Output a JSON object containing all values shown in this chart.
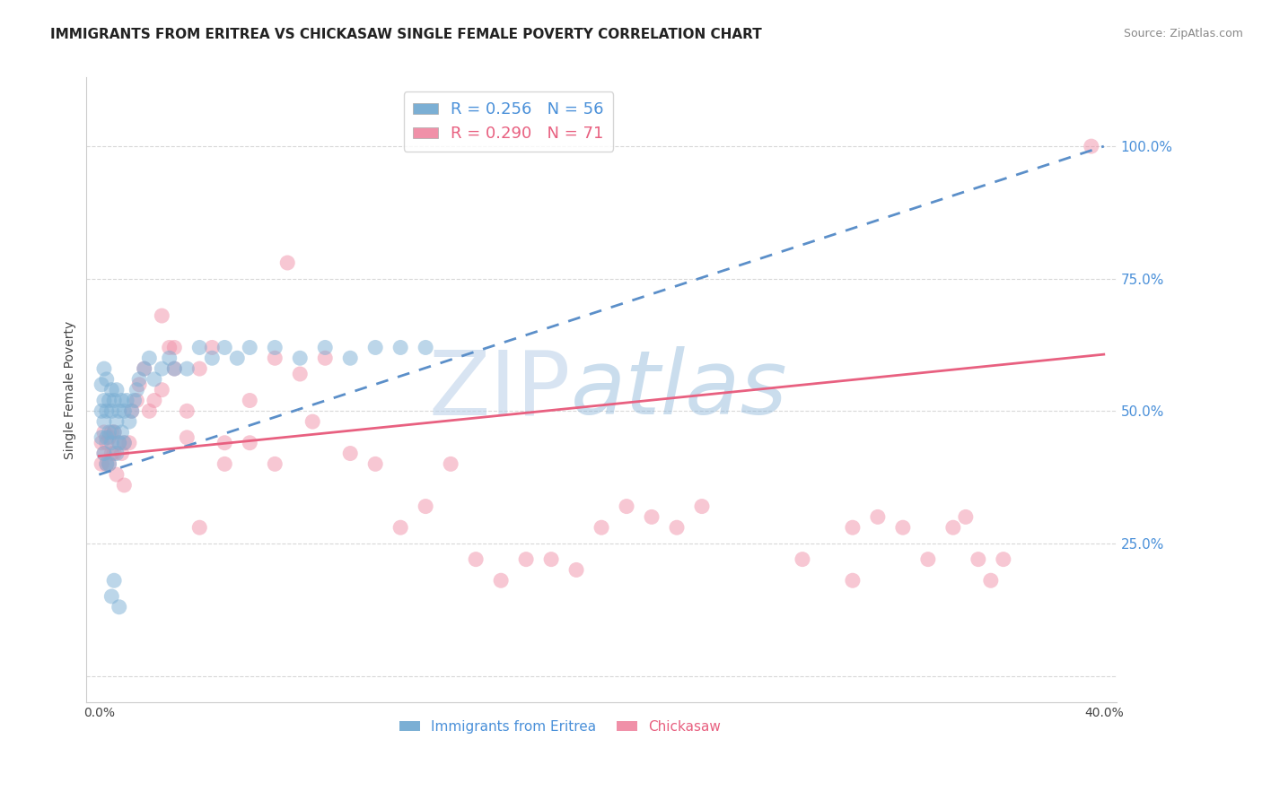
{
  "title": "IMMIGRANTS FROM ERITREA VS CHICKASAW SINGLE FEMALE POVERTY CORRELATION CHART",
  "source_text": "Source: ZipAtlas.com",
  "ylabel": "Single Female Poverty",
  "xlim": [
    -0.005,
    0.405
  ],
  "ylim": [
    -0.05,
    1.13
  ],
  "yticks": [
    0.0,
    0.25,
    0.5,
    0.75,
    1.0
  ],
  "ytick_labels": [
    "",
    "25.0%",
    "50.0%",
    "75.0%",
    "100.0%"
  ],
  "xticks": [
    0.0,
    0.1,
    0.2,
    0.3,
    0.4
  ],
  "xtick_labels": [
    "0.0%",
    "",
    "",
    "",
    "40.0%"
  ],
  "watermark_zip": "ZIP",
  "watermark_atlas": "atlas",
  "blue_scatter_x": [
    0.001,
    0.001,
    0.001,
    0.002,
    0.002,
    0.002,
    0.002,
    0.003,
    0.003,
    0.003,
    0.003,
    0.004,
    0.004,
    0.004,
    0.005,
    0.005,
    0.005,
    0.006,
    0.006,
    0.007,
    0.007,
    0.007,
    0.008,
    0.008,
    0.009,
    0.009,
    0.01,
    0.01,
    0.011,
    0.012,
    0.013,
    0.014,
    0.015,
    0.016,
    0.018,
    0.02,
    0.022,
    0.025,
    0.028,
    0.03,
    0.035,
    0.04,
    0.045,
    0.05,
    0.055,
    0.06,
    0.07,
    0.08,
    0.09,
    0.1,
    0.11,
    0.12,
    0.13,
    0.005,
    0.006,
    0.008
  ],
  "blue_scatter_y": [
    0.55,
    0.5,
    0.45,
    0.58,
    0.52,
    0.48,
    0.42,
    0.56,
    0.5,
    0.45,
    0.4,
    0.52,
    0.46,
    0.4,
    0.54,
    0.5,
    0.44,
    0.52,
    0.46,
    0.54,
    0.48,
    0.42,
    0.5,
    0.44,
    0.52,
    0.46,
    0.5,
    0.44,
    0.52,
    0.48,
    0.5,
    0.52,
    0.54,
    0.56,
    0.58,
    0.6,
    0.56,
    0.58,
    0.6,
    0.58,
    0.58,
    0.62,
    0.6,
    0.62,
    0.6,
    0.62,
    0.62,
    0.6,
    0.62,
    0.6,
    0.62,
    0.62,
    0.62,
    0.15,
    0.18,
    0.13
  ],
  "pink_scatter_x": [
    0.001,
    0.001,
    0.002,
    0.002,
    0.003,
    0.003,
    0.004,
    0.004,
    0.005,
    0.005,
    0.006,
    0.006,
    0.007,
    0.008,
    0.009,
    0.01,
    0.012,
    0.013,
    0.015,
    0.016,
    0.018,
    0.02,
    0.022,
    0.025,
    0.028,
    0.03,
    0.035,
    0.04,
    0.045,
    0.05,
    0.06,
    0.07,
    0.075,
    0.08,
    0.085,
    0.09,
    0.1,
    0.11,
    0.12,
    0.13,
    0.14,
    0.15,
    0.16,
    0.17,
    0.18,
    0.19,
    0.2,
    0.21,
    0.22,
    0.23,
    0.24,
    0.28,
    0.3,
    0.31,
    0.32,
    0.33,
    0.34,
    0.345,
    0.35,
    0.355,
    0.36,
    0.3,
    0.04,
    0.05,
    0.06,
    0.07,
    0.025,
    0.03,
    0.035,
    0.395,
    0.01
  ],
  "pink_scatter_y": [
    0.4,
    0.44,
    0.42,
    0.46,
    0.4,
    0.44,
    0.4,
    0.45,
    0.42,
    0.46,
    0.42,
    0.46,
    0.38,
    0.44,
    0.42,
    0.44,
    0.44,
    0.5,
    0.52,
    0.55,
    0.58,
    0.5,
    0.52,
    0.54,
    0.62,
    0.58,
    0.5,
    0.58,
    0.62,
    0.4,
    0.52,
    0.6,
    0.78,
    0.57,
    0.48,
    0.6,
    0.42,
    0.4,
    0.28,
    0.32,
    0.4,
    0.22,
    0.18,
    0.22,
    0.22,
    0.2,
    0.28,
    0.32,
    0.3,
    0.28,
    0.32,
    0.22,
    0.28,
    0.3,
    0.28,
    0.22,
    0.28,
    0.3,
    0.22,
    0.18,
    0.22,
    0.18,
    0.28,
    0.44,
    0.44,
    0.4,
    0.68,
    0.62,
    0.45,
    1.0,
    0.36
  ],
  "blue_line_intercept": 0.38,
  "blue_line_slope": 1.55,
  "pink_line_intercept": 0.415,
  "pink_line_slope": 0.48,
  "title_fontsize": 11,
  "axis_fontsize": 10,
  "tick_fontsize": 10,
  "background_color": "#ffffff",
  "scatter_blue_color": "#7bafd4",
  "scatter_pink_color": "#f090a8",
  "blue_line_color": "#5b8fc9",
  "pink_line_color": "#e86080",
  "grid_color": "#d8d8d8",
  "right_axis_color": "#4a90d9"
}
